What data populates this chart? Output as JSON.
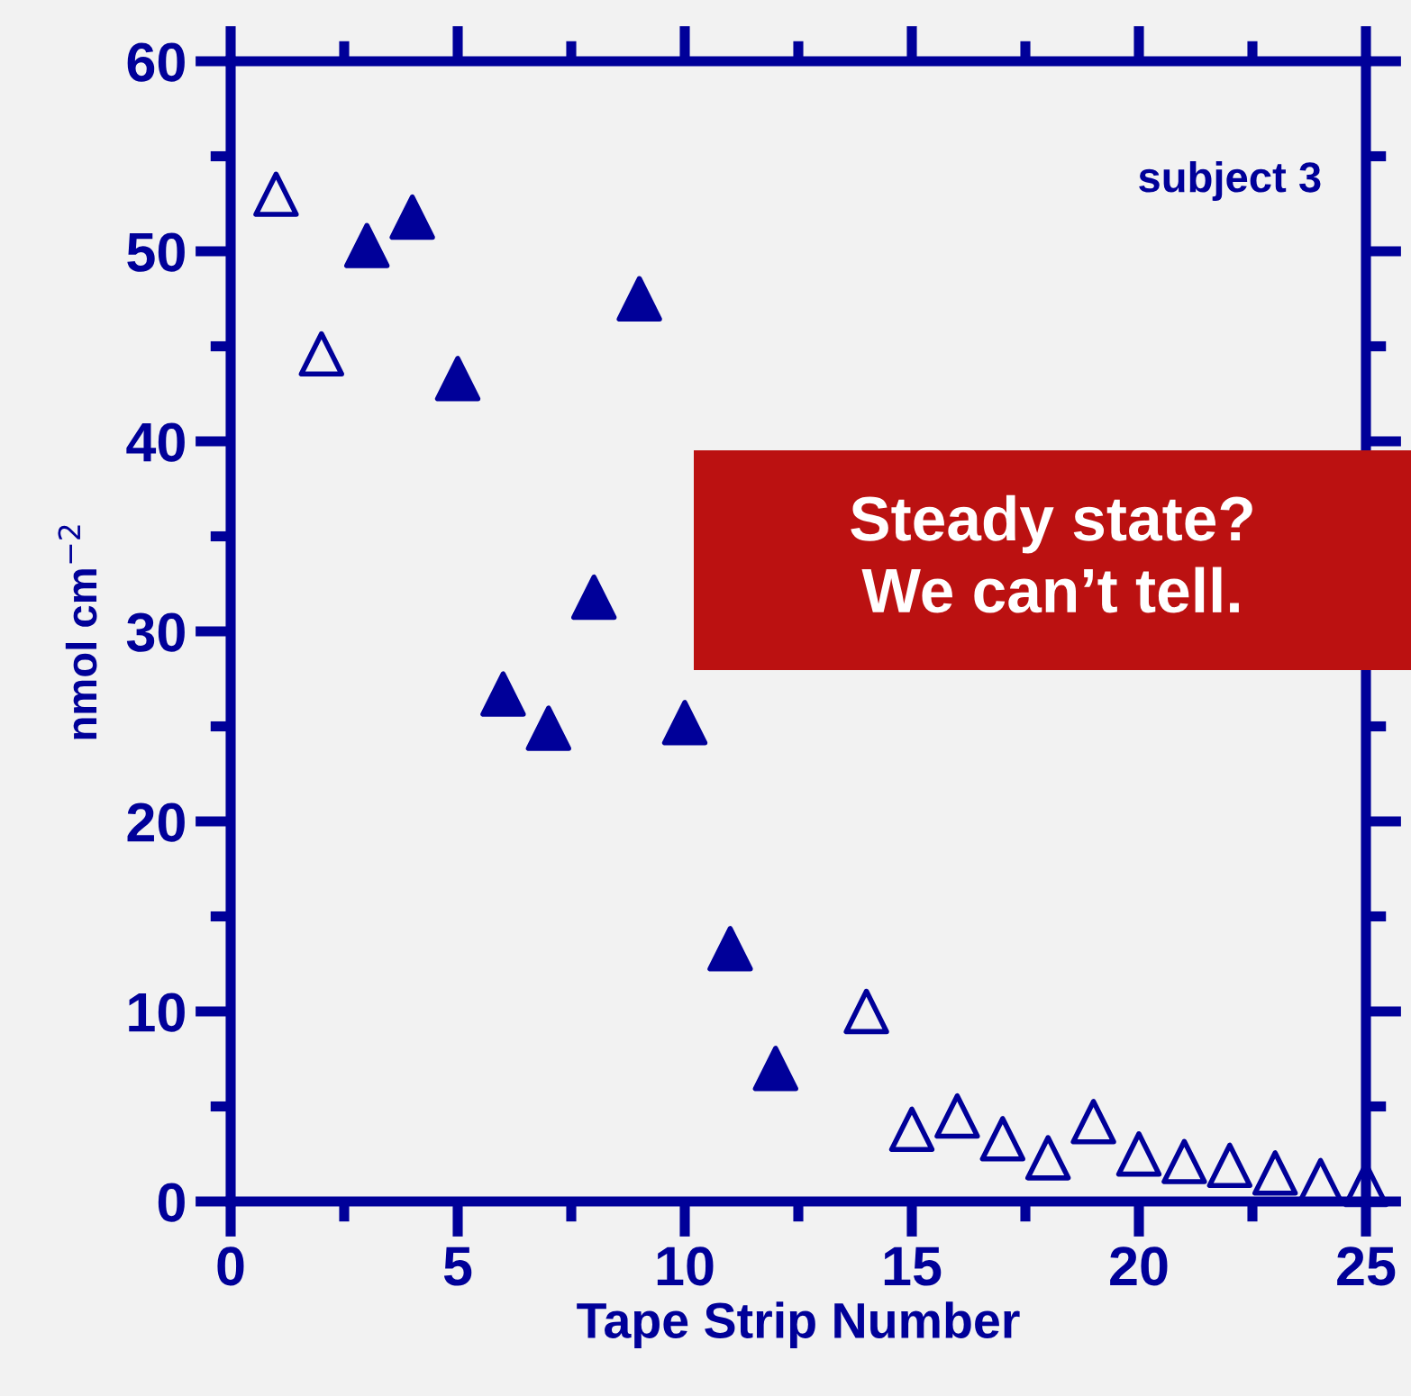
{
  "chart_data": {
    "type": "scatter",
    "xlabel": "Tape Strip Number",
    "ylabel": "nmol cm$^{−2}$",
    "xlim": [
      0,
      25
    ],
    "xticks": [
      0,
      5,
      10,
      15,
      20,
      25
    ],
    "ylim": [
      0,
      60
    ],
    "yticks": [
      0,
      10,
      20,
      30,
      40,
      50,
      60
    ],
    "grid": false,
    "legend": false,
    "series": [
      {
        "color": "#000099",
        "marker": "triangle",
        "x": [
          3,
          4,
          5,
          6,
          7,
          8,
          9,
          10,
          11,
          12
        ],
        "values": [
          50.3,
          51.8,
          43.3,
          26.7,
          24.9,
          31.8,
          47.5,
          25.2,
          13.3,
          7.0
        ]
      },
      {
        "color": "#000099",
        "marker": "triangle open",
        "x": [
          1,
          2,
          14,
          15,
          16,
          17,
          18,
          19,
          20,
          21,
          22,
          23,
          24,
          25
        ],
        "values": [
          53.0,
          44.6,
          10.0,
          3.8,
          4.5,
          3.3,
          2.3,
          4.2,
          2.5,
          2.1,
          1.9,
          1.5,
          1.1,
          0.9
        ]
      }
    ],
    "annotations": [
      "subject 3",
      "Steady state?\nWe can’t tell."
    ]
  }
}
